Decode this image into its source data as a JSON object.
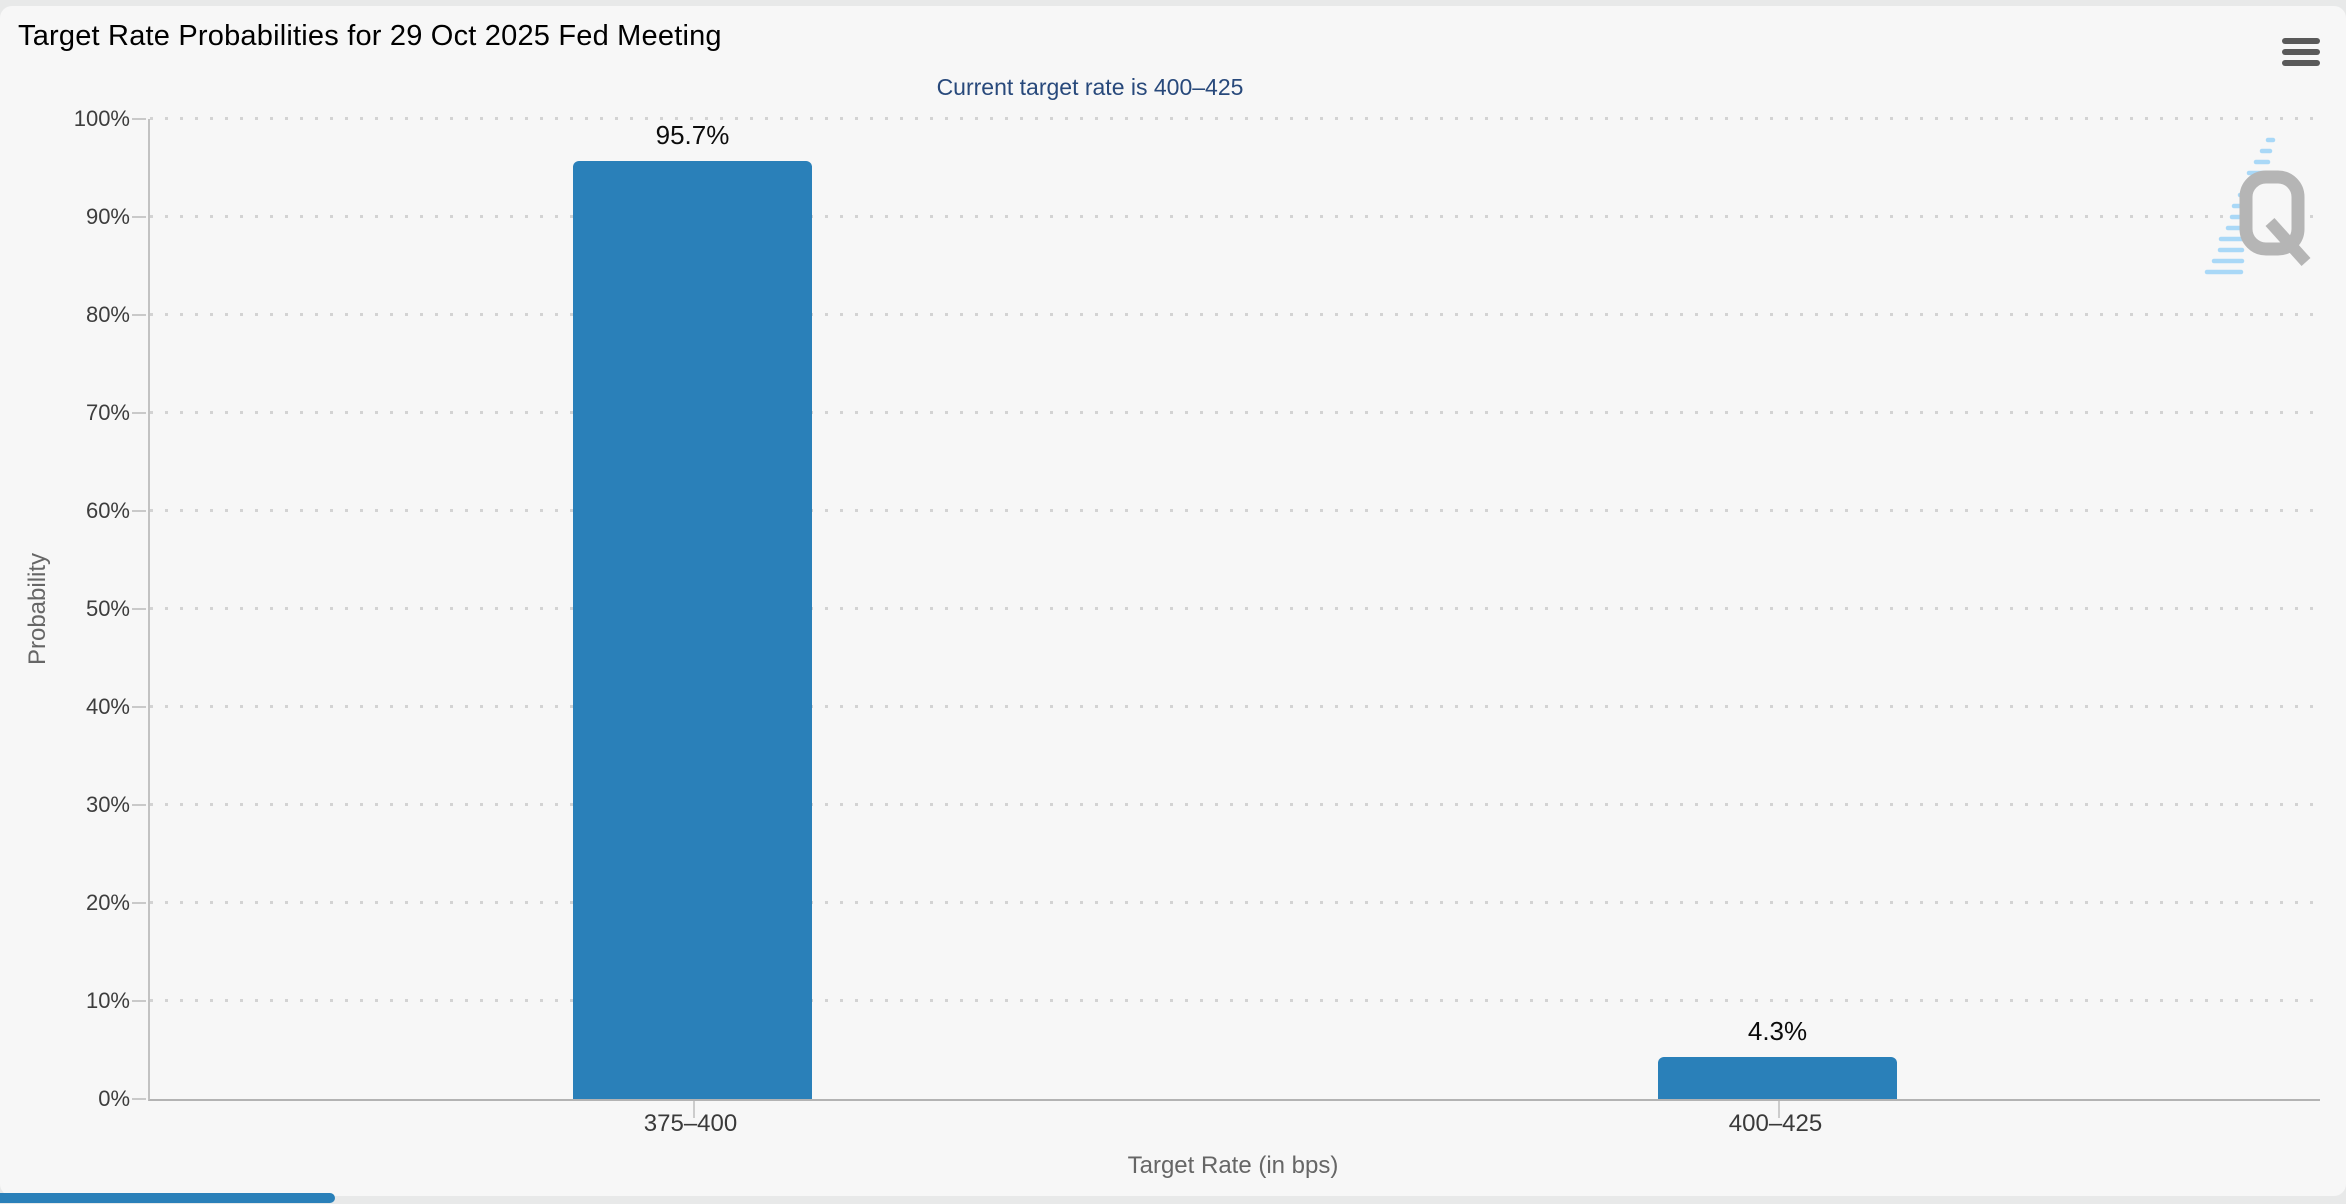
{
  "header": {
    "menu_icon": "hamburger-menu"
  },
  "chart_data": {
    "type": "bar",
    "title": "Target Rate Probabilities for 29 Oct 2025 Fed Meeting",
    "subtitle": "Current target rate is 400–425",
    "categories": [
      "375–400",
      "400–425"
    ],
    "values": [
      95.7,
      4.3
    ],
    "value_labels": [
      "95.7%",
      "4.3%"
    ],
    "xlabel": "Target Rate (in bps)",
    "ylabel": "Probability",
    "ylim": [
      0,
      100
    ],
    "ytick_step": 10,
    "ytick_labels": [
      "0%",
      "10%",
      "20%",
      "30%",
      "40%",
      "50%",
      "60%",
      "70%",
      "80%",
      "90%",
      "100%"
    ],
    "grid": "dotted-horizontal",
    "legend": "none",
    "bar_color": "#2A80B9"
  },
  "watermark": {
    "letter": "Q",
    "letter_color": "#B5B5B5",
    "stripe_color": "#A9D8F7"
  },
  "colors": {
    "page_bg": "#E8E9E9",
    "card_bg": "#F7F7F7",
    "title_text": "#000000",
    "subtitle_text": "#28497B",
    "tick_label_text": "#3D3D3D",
    "axis_title_text": "#666666",
    "grid_dot": "#D3D3D3",
    "menu_icon": "#5A5A5A",
    "scroll_thumb": "#2A80B9"
  }
}
